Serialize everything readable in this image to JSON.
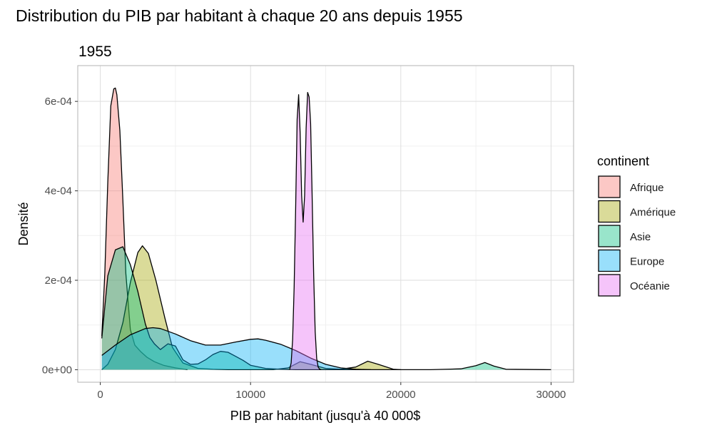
{
  "chart_data": {
    "type": "area",
    "title": "Distribution du PIB par habitant à chaque 20 ans depuis 1955",
    "subtitle": "1955",
    "xlabel": "PIB par habitant (jusqu'à 40 000$",
    "ylabel": "Densité",
    "xlim": [
      -1500,
      31500
    ],
    "ylim": [
      -2.8e-05,
      0.00068
    ],
    "x_ticks": [
      0,
      10000,
      20000,
      30000
    ],
    "x_tick_labels": [
      "0",
      "10000",
      "20000",
      "30000"
    ],
    "y_ticks": [
      0,
      0.0002,
      0.0004,
      0.0006
    ],
    "y_tick_labels": [
      "0e+00",
      "2e-04",
      "4e-04",
      "6e-04"
    ],
    "grid": true,
    "legend": {
      "title": "continent",
      "position": "right"
    },
    "series": [
      {
        "name": "Afrique",
        "color": "#F8766D",
        "x": [
          100,
          300,
          500,
          700,
          900,
          1000,
          1100,
          1300,
          1500,
          1700,
          2000,
          2300,
          2700,
          3100,
          3600,
          4200,
          5000,
          5800
        ],
        "y": [
          7.5e-05,
          0.000215,
          0.00042,
          0.00059,
          0.000628,
          0.00063,
          0.000615,
          0.000535,
          0.00038,
          0.000215,
          9e-05,
          5.5e-05,
          4e-05,
          2.8e-05,
          1.8e-05,
          1e-05,
          4e-06,
          0
        ]
      },
      {
        "name": "Amérique",
        "color": "#A3A500",
        "x": [
          100,
          500,
          1000,
          1500,
          2000,
          2500,
          2800,
          3200,
          3700,
          4300,
          4800,
          5500,
          6500,
          7500,
          8500,
          9500,
          10500,
          11500,
          12500,
          13300,
          14000,
          15000,
          16000,
          17000,
          17800,
          18500,
          19500,
          20000
        ],
        "y": [
          0,
          1.2e-05,
          4.5e-05,
          0.000105,
          0.000195,
          0.000262,
          0.000277,
          0.00026,
          0.0002,
          0.000115,
          5e-05,
          1.5e-05,
          3e-06,
          1e-06,
          0,
          0,
          0,
          0,
          4e-06,
          1.8e-05,
          1.2e-05,
          3e-06,
          1e-06,
          6e-06,
          1.9e-05,
          1.2e-05,
          1e-06,
          0
        ]
      },
      {
        "name": "Asie",
        "color": "#00BF7D",
        "x": [
          100,
          500,
          1000,
          1500,
          2000,
          2500,
          3000,
          3300,
          3600,
          4000,
          4500,
          5000,
          5500,
          6000,
          6500,
          7000,
          7500,
          8000,
          8500,
          9000,
          9500,
          10000,
          11000,
          12000,
          13000,
          14000,
          16000,
          18000,
          20000,
          22000,
          24000,
          25000,
          25600,
          26200,
          27000,
          30000
        ],
        "y": [
          7e-05,
          0.00021,
          0.000268,
          0.000275,
          0.000235,
          0.000175,
          0.000102,
          7.2e-05,
          5.8e-05,
          4.5e-05,
          5.8e-05,
          5.3e-05,
          2.2e-05,
          1.2e-05,
          1.3e-05,
          2.2e-05,
          3.4e-05,
          4.1e-05,
          3.9e-05,
          3e-05,
          2.1e-05,
          1e-05,
          3e-06,
          1e-06,
          0,
          0,
          0,
          0,
          0,
          0,
          2e-06,
          9e-06,
          1.6e-05,
          8e-06,
          1e-06,
          0
        ]
      },
      {
        "name": "Europe",
        "color": "#00B0F6",
        "x": [
          100,
          1000,
          2000,
          3000,
          3500,
          4000,
          5000,
          6000,
          7000,
          8000,
          9000,
          10000,
          10500,
          11000,
          12000,
          13000,
          14000,
          15000,
          16000,
          17000,
          18000
        ],
        "y": [
          3.2e-05,
          5.5e-05,
          7.8e-05,
          9.2e-05,
          9.4e-05,
          9.2e-05,
          8e-05,
          6.5e-05,
          5.5e-05,
          5.5e-05,
          6.2e-05,
          6.8e-05,
          6.9e-05,
          6.6e-05,
          5.7e-05,
          4.3e-05,
          2.6e-05,
          1.2e-05,
          4e-06,
          1e-06,
          0
        ]
      },
      {
        "name": "Océanie",
        "color": "#E76BF3",
        "x": [
          12600,
          12700,
          12800,
          12900,
          13000,
          13100,
          13200,
          13300,
          13400,
          13500,
          13600,
          13700,
          13800,
          13900,
          14000,
          14100,
          14200,
          14300,
          14400,
          14500,
          14600,
          14700
        ],
        "y": [
          0,
          1.5e-05,
          6.8e-05,
          0.000185,
          0.00036,
          0.00056,
          0.000615,
          0.00053,
          0.00039,
          0.00033,
          0.00039,
          0.00054,
          0.00062,
          0.00061,
          0.00055,
          0.00039,
          0.00021,
          8.5e-05,
          2.5e-05,
          6e-06,
          1e-06,
          0
        ]
      }
    ]
  }
}
